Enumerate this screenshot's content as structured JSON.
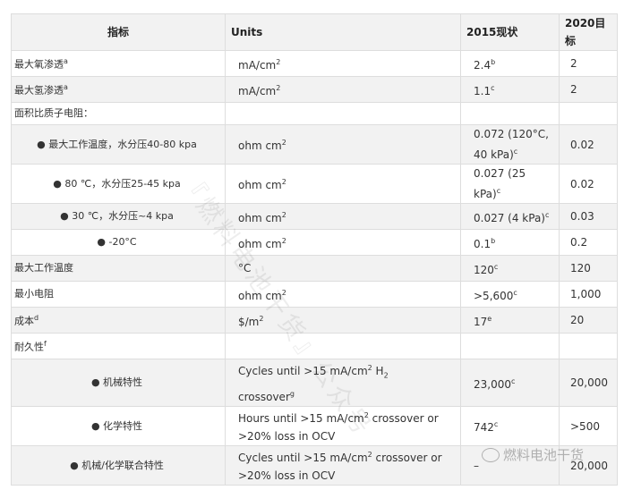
{
  "header": {
    "col1": "指标",
    "col2": "Units",
    "col3": "2015现状",
    "col4": "2020目标"
  },
  "rows": [
    {
      "name": "最大氧渗透",
      "name_sup": "a",
      "unit": "mA/cm",
      "unit_sup": "2",
      "v2015": "2.4",
      "v2015_sup": "b",
      "v2020": "2"
    },
    {
      "name": "最大氢渗透",
      "name_sup": "a",
      "unit": "mA/cm",
      "unit_sup": "2",
      "v2015": "1.1",
      "v2015_sup": "c",
      "v2020": "2"
    },
    {
      "name": "面积比质子电阻："
    },
    {
      "name": "● 最大工作温度，水分压40-80 kpa",
      "unit": "ohm cm",
      "unit_sup": "2",
      "v2015": "0.072 (120°C, 40 kPa)",
      "v2015_sup": "c",
      "v2020": "0.02"
    },
    {
      "name": "● 80 ℃，水分压25-45 kpa",
      "unit": "ohm cm",
      "unit_sup": "2",
      "v2015": "0.027 (25 kPa)",
      "v2015_sup": "c",
      "v2020": "0.02"
    },
    {
      "name": "● 30 ℃，水分压~4 kpa",
      "unit": "ohm cm",
      "unit_sup": "2",
      "v2015": "0.027 (4 kPa)",
      "v2015_sup": "c",
      "v2020": "0.03"
    },
    {
      "name": "● -20°C",
      "unit": "ohm cm",
      "unit_sup": "2",
      "v2015": "0.1",
      "v2015_sup": "b",
      "v2020": "0.2"
    },
    {
      "name": "最大工作温度",
      "unit": "°C",
      "v2015": "120",
      "v2015_sup": "c",
      "v2020": "120"
    },
    {
      "name": "最小电阻",
      "unit": "ohm cm",
      "unit_sup": "2",
      "v2015": ">5,600",
      "v2015_sup": "c",
      "v2020": "1,000"
    },
    {
      "name": "成本",
      "name_sup": "d",
      "unit": "$/m",
      "unit_sup": "2",
      "v2015": "17",
      "v2015_sup": "e",
      "v2020": "20"
    },
    {
      "name": "耐久性",
      "name_sup": "f"
    },
    {
      "name": "● 机械特性",
      "unit": "Cycles until >15 mA/cm",
      "unit_sup": "2",
      "unit_rest": " H",
      "unit_sub": "2",
      "unit_rest2": " crossover",
      "unit_sup2": "g",
      "v2015": "23,000",
      "v2015_sup": "c",
      "v2020": "20,000"
    },
    {
      "name": "● 化学特性",
      "unit": "Hours until >15 mA/cm",
      "unit_sup": "2",
      "unit_rest": " crossover or >20% loss in OCV",
      "v2015": "742",
      "v2015_sup": "c",
      "v2020": ">500"
    },
    {
      "name": "● 机械/化学联合特性",
      "unit": "Cycles until >15 mA/cm",
      "unit_sup": "2",
      "unit_rest": " crossover or >20% loss in OCV",
      "v2015": "–",
      "v2020": "20,000"
    }
  ],
  "watermark": "『燃料电池干货』公众号",
  "logo_text": "燃料电池干货",
  "colors": {
    "header_bg": "#f2f2f2",
    "stripe_bg": "#f2f2f2",
    "border": "#dddddd"
  }
}
